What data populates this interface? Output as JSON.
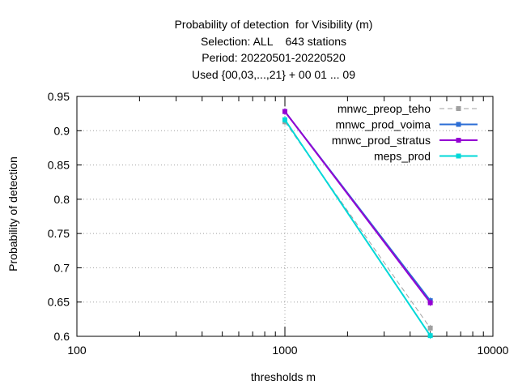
{
  "chart_data": {
    "type": "line",
    "title": [
      "Probability of detection  for Visibility (m)",
      "Selection: ALL    643 stations",
      "Period: 20220501-20220520",
      "Used {00,03,...,21} + 00 01 ... 09"
    ],
    "xlabel": "thresholds m",
    "ylabel": "Probability of detection",
    "x_scale": "log",
    "xlim": [
      100,
      10000
    ],
    "ylim": [
      0.6,
      0.95
    ],
    "x_ticks": [
      100,
      1000,
      10000
    ],
    "x_tick_labels": [
      "100",
      "1000",
      "10000"
    ],
    "y_ticks": [
      0.6,
      0.65,
      0.7,
      0.75,
      0.8,
      0.85,
      0.9,
      0.95
    ],
    "y_tick_labels": [
      "0.6",
      "0.65",
      "0.7",
      "0.75",
      "0.8",
      "0.85",
      "0.9",
      "0.95"
    ],
    "grid": true,
    "legend_position": "top-right",
    "series": [
      {
        "name": "mnwc_preop_teho",
        "color": "#a0a0a0",
        "dashed": true,
        "x": [
          1000,
          5000
        ],
        "y": [
          0.913,
          0.612
        ]
      },
      {
        "name": "mnwc_prod_voima",
        "color": "#2c6ed5",
        "dashed": false,
        "x": [
          1000,
          5000
        ],
        "y": [
          0.928,
          0.652
        ]
      },
      {
        "name": "mnwc_prod_stratus",
        "color": "#9400d3",
        "dashed": false,
        "x": [
          1000,
          5000
        ],
        "y": [
          0.928,
          0.649
        ]
      },
      {
        "name": "meps_prod",
        "color": "#00d8d8",
        "dashed": false,
        "x": [
          1000,
          5000
        ],
        "y": [
          0.916,
          0.601
        ]
      }
    ]
  }
}
